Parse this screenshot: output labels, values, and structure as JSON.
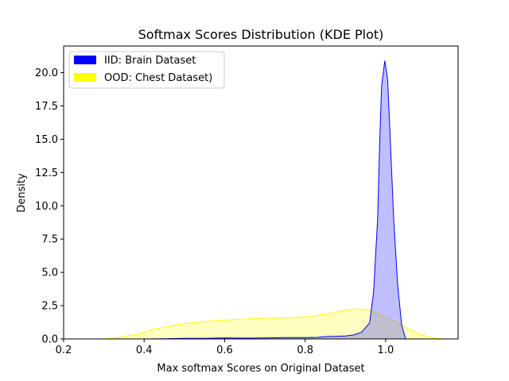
{
  "chart_data": {
    "type": "area",
    "title": "Softmax Scores Distribution (KDE Plot)",
    "xlabel": "Max softmax Scores on Original Dataset",
    "ylabel": "Density",
    "xlim": [
      0.2,
      1.18
    ],
    "ylim": [
      0,
      22.0
    ],
    "xticks": [
      "0.2",
      "0.4",
      "0.6",
      "0.8",
      "1.0"
    ],
    "yticks": [
      "0.0",
      "2.5",
      "5.0",
      "7.5",
      "10.0",
      "12.5",
      "15.0",
      "17.5",
      "20.0"
    ],
    "grid": false,
    "legend_position": "top-left",
    "series": [
      {
        "name": "IID: Brain Dataset",
        "color": "#0000ff",
        "points": [
          [
            0.4,
            0
          ],
          [
            0.45,
            0.02
          ],
          [
            0.5,
            0.04
          ],
          [
            0.55,
            0.05
          ],
          [
            0.6,
            0.08
          ],
          [
            0.65,
            0.06
          ],
          [
            0.7,
            0.07
          ],
          [
            0.75,
            0.1
          ],
          [
            0.8,
            0.1
          ],
          [
            0.83,
            0.12
          ],
          [
            0.85,
            0.18
          ],
          [
            0.88,
            0.2
          ],
          [
            0.9,
            0.22
          ],
          [
            0.92,
            0.3
          ],
          [
            0.94,
            0.5
          ],
          [
            0.96,
            1.2
          ],
          [
            0.97,
            3.5
          ],
          [
            0.98,
            9.0
          ],
          [
            0.985,
            14.5
          ],
          [
            0.99,
            19.0
          ],
          [
            0.998,
            20.9
          ],
          [
            1.005,
            19.5
          ],
          [
            1.01,
            16.0
          ],
          [
            1.02,
            9.0
          ],
          [
            1.03,
            4.0
          ],
          [
            1.04,
            1.0
          ],
          [
            1.05,
            0
          ]
        ]
      },
      {
        "name": "OOD: Chest Dataset)",
        "color": "#ffff00",
        "points": [
          [
            0.3,
            0
          ],
          [
            0.34,
            0.1
          ],
          [
            0.38,
            0.35
          ],
          [
            0.42,
            0.7
          ],
          [
            0.46,
            0.95
          ],
          [
            0.5,
            1.15
          ],
          [
            0.54,
            1.28
          ],
          [
            0.58,
            1.38
          ],
          [
            0.62,
            1.45
          ],
          [
            0.66,
            1.5
          ],
          [
            0.7,
            1.55
          ],
          [
            0.74,
            1.58
          ],
          [
            0.78,
            1.62
          ],
          [
            0.82,
            1.72
          ],
          [
            0.86,
            1.9
          ],
          [
            0.9,
            2.15
          ],
          [
            0.93,
            2.25
          ],
          [
            0.96,
            2.15
          ],
          [
            0.98,
            1.9
          ],
          [
            1.0,
            1.6
          ],
          [
            1.03,
            1.2
          ],
          [
            1.06,
            0.7
          ],
          [
            1.09,
            0.3
          ],
          [
            1.12,
            0.08
          ],
          [
            1.14,
            0
          ]
        ]
      }
    ]
  }
}
